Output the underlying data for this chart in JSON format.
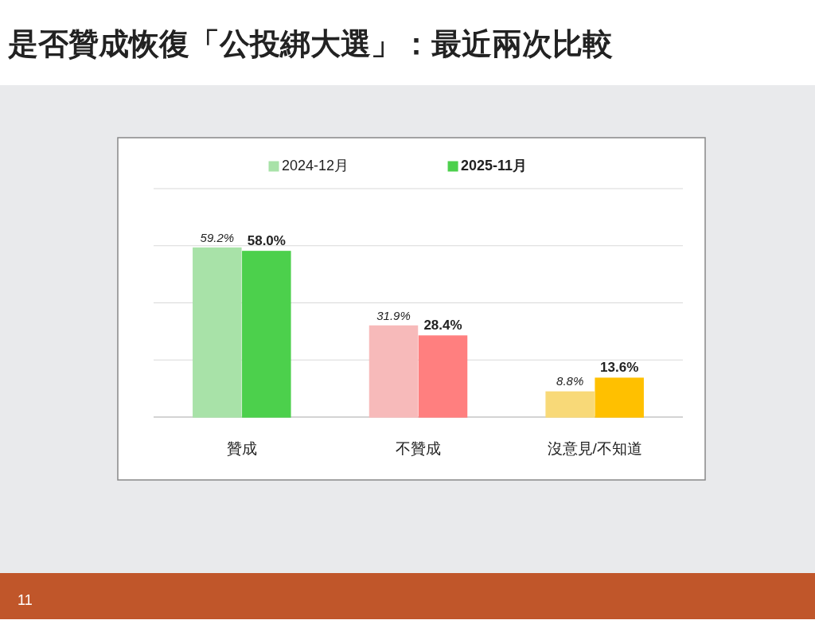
{
  "chart_data": {
    "type": "bar",
    "title": "是否贊成恢復「公投綁大選」：最近兩次比較",
    "categories": [
      "贊成",
      "不贊成",
      "沒意見/不知道"
    ],
    "series": [
      {
        "name": "2024-12月",
        "color": "#a8e2a8",
        "colors": [
          "#a8e2a8",
          "#f7baba",
          "#f8d978"
        ],
        "values": [
          59.2,
          31.9,
          8.8
        ],
        "value_labels": [
          "59.2%",
          "31.9%",
          "8.8%"
        ]
      },
      {
        "name": "2025-11月",
        "color": "#4cd04c",
        "colors": [
          "#4cd04c",
          "#ff7f7f",
          "#ffc000"
        ],
        "values": [
          58.0,
          28.4,
          13.6
        ],
        "value_labels": [
          "58.0%",
          "28.4%",
          "13.6%"
        ]
      }
    ],
    "ylim": [
      0,
      80
    ],
    "yticks": [
      {
        "value": 0,
        "label": null
      },
      {
        "value": 20,
        "label": null
      },
      {
        "value": 40,
        "label": null
      },
      {
        "value": 60,
        "label": null
      },
      {
        "value": 80,
        "label": null
      }
    ],
    "grid": "y",
    "legend": "top",
    "annotations": [
      "11"
    ]
  }
}
